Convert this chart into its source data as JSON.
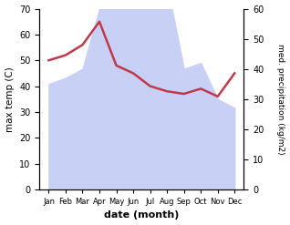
{
  "months": [
    "Jan",
    "Feb",
    "Mar",
    "Apr",
    "May",
    "Jun",
    "Jul",
    "Aug",
    "Sep",
    "Oct",
    "Nov",
    "Dec"
  ],
  "precipitation": [
    35,
    37,
    40,
    60,
    62,
    60,
    63,
    68,
    40,
    42,
    30,
    27
  ],
  "max_temp": [
    50,
    52,
    56,
    65,
    48,
    45,
    40,
    38,
    37,
    39,
    36,
    45
  ],
  "precip_fill_color": "#c8d0f5",
  "temp_color": "#c0394b",
  "left_ylim": [
    0,
    70
  ],
  "right_ylim": [
    0,
    60
  ],
  "left_yticks": [
    0,
    10,
    20,
    30,
    40,
    50,
    60,
    70
  ],
  "right_yticks": [
    0,
    10,
    20,
    30,
    40,
    50,
    60
  ],
  "xlabel": "date (month)",
  "ylabel_left": "max temp (C)",
  "ylabel_right": "med. precipitation (kg/m2)"
}
